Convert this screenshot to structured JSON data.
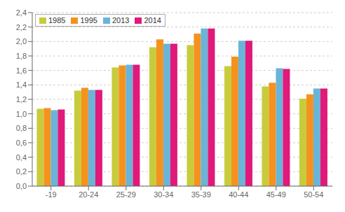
{
  "chart_data": {
    "type": "bar",
    "categories": [
      "-19",
      "20-24",
      "25-29",
      "30-34",
      "35-39",
      "40-44",
      "45-49",
      "50-54"
    ],
    "series": [
      {
        "name": "1985",
        "color": "#c8cc3c",
        "values": [
          1.07,
          1.32,
          1.64,
          1.92,
          1.95,
          1.66,
          1.38,
          1.21
        ]
      },
      {
        "name": "1995",
        "color": "#f5921e",
        "values": [
          1.08,
          1.36,
          1.67,
          2.03,
          2.11,
          1.79,
          1.43,
          1.27
        ]
      },
      {
        "name": "2013",
        "color": "#6ab4d8",
        "values": [
          1.05,
          1.33,
          1.68,
          1.97,
          2.18,
          2.01,
          1.63,
          1.35
        ]
      },
      {
        "name": "2014",
        "color": "#e0197a",
        "values": [
          1.06,
          1.33,
          1.68,
          1.97,
          2.18,
          2.01,
          1.62,
          1.35
        ]
      }
    ],
    "ylim": [
      0.0,
      2.4
    ],
    "yticks": [
      {
        "value": 0.0,
        "label": "0,0"
      },
      {
        "value": 0.2,
        "label": "0,2"
      },
      {
        "value": 0.4,
        "label": "0,4"
      },
      {
        "value": 0.6,
        "label": "0,6"
      },
      {
        "value": 0.8,
        "label": "0,8"
      },
      {
        "value": 1.0,
        "label": "1,0"
      },
      {
        "value": 1.2,
        "label": "1,2"
      },
      {
        "value": 1.4,
        "label": "1,4"
      },
      {
        "value": 1.6,
        "label": "1,6"
      },
      {
        "value": 1.8,
        "label": "1,8"
      },
      {
        "value": 2.0,
        "label": "2,0"
      },
      {
        "value": 2.2,
        "label": "2,2"
      },
      {
        "value": 2.4,
        "label": "2,4"
      }
    ],
    "grid": true,
    "legend": "upper left"
  }
}
